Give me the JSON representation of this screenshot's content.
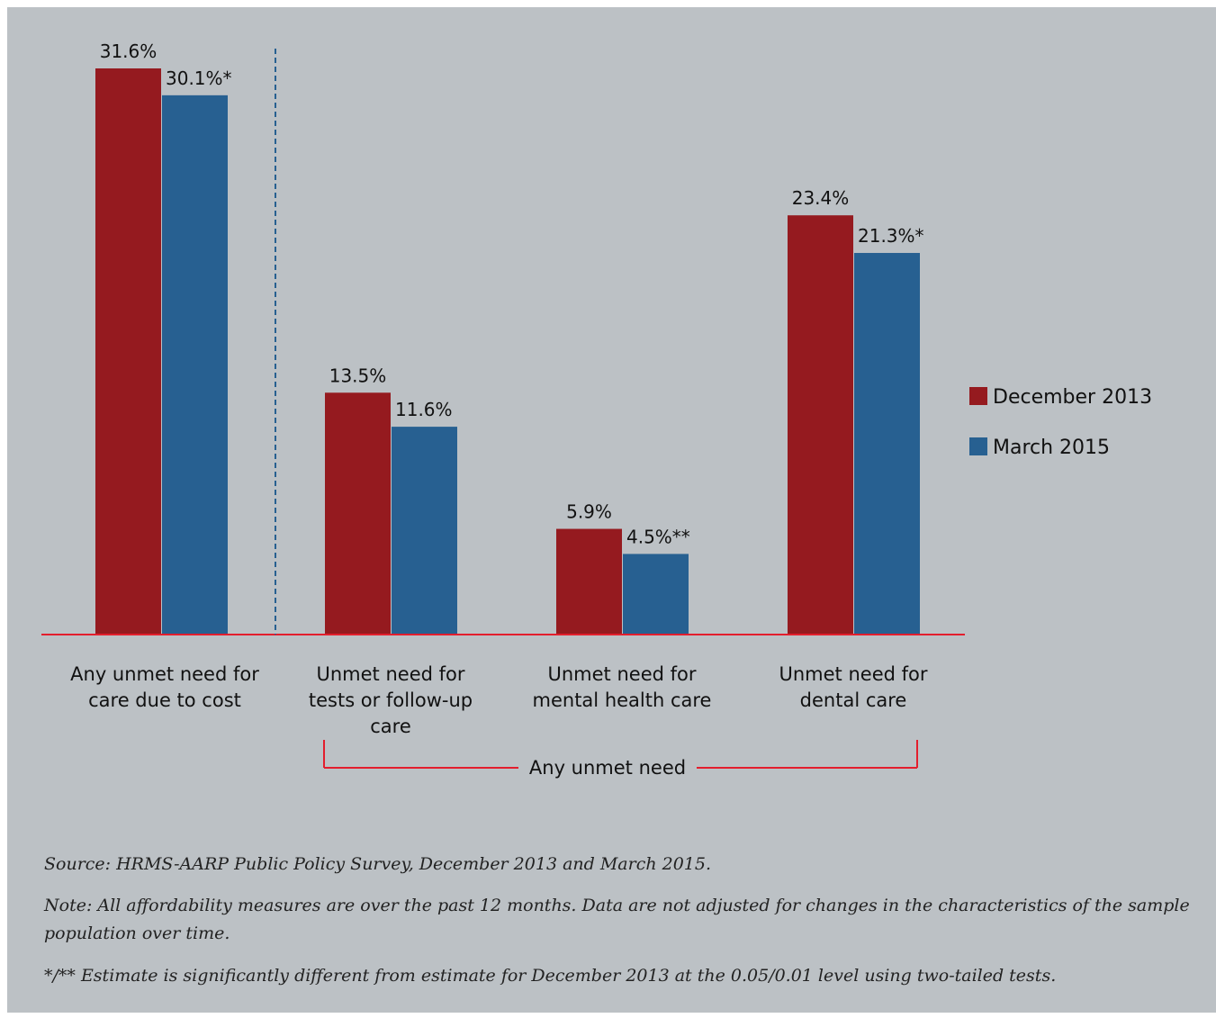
{
  "chart_data": {
    "type": "bar",
    "categories": [
      "Any unmet need for care due to cost",
      "Unmet need for tests or follow-up care",
      "Unmet need for mental health care",
      "Unmet need for dental care"
    ],
    "category_lines": [
      [
        "Any unmet need for",
        "care due to cost"
      ],
      [
        "Unmet need for",
        "tests or follow-up",
        "care"
      ],
      [
        "Unmet need for",
        "mental health care"
      ],
      [
        "Unmet need for",
        "dental care"
      ]
    ],
    "series": [
      {
        "name": "December 2013",
        "color": "#951a1f",
        "values": [
          31.6,
          13.5,
          5.9,
          23.4
        ],
        "labels": [
          "31.6%",
          "13.5%",
          "5.9%",
          "23.4%"
        ]
      },
      {
        "name": "March 2015",
        "color": "#276091",
        "values": [
          30.1,
          11.6,
          4.5,
          21.3
        ],
        "labels": [
          "30.1%*",
          "11.6%",
          "4.5%**",
          "21.3%*"
        ]
      }
    ],
    "group_label": "Any unmet need",
    "ylim": [
      0,
      35
    ],
    "grid": false,
    "legend_position": "right",
    "baseline_color": "#e31e2d",
    "divider_color": "#276091"
  },
  "notes": {
    "source": "Source: HRMS-AARP Public Policy Survey, December 2013 and March 2015.",
    "note": "Note: All affordability measures are over the past 12 months. Data are not adjusted for changes in the characteristics of the sample population over time.",
    "significance": "*/** Estimate is significantly different from estimate for December 2013 at the 0.05/0.01 level using two-tailed tests."
  }
}
